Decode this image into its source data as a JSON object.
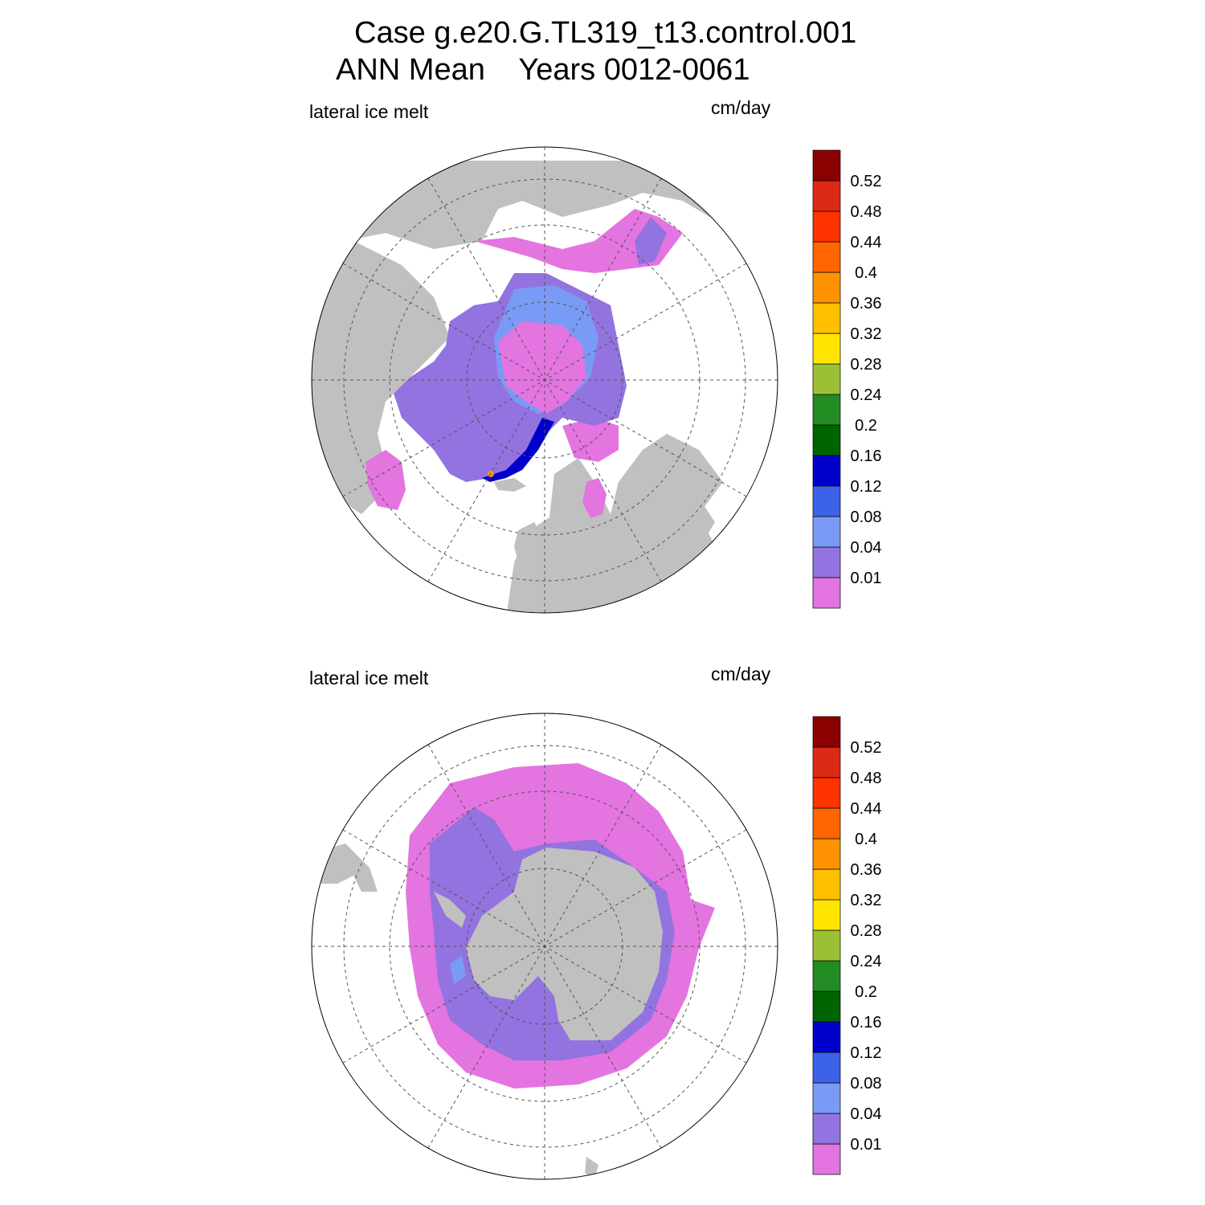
{
  "header": {
    "case_line": "Case g.e20.G.TL319_t13.control.001",
    "period_line": "ANN Mean    Years 0012-0061"
  },
  "colorbar": {
    "levels": [
      "0.01",
      "0.04",
      "0.08",
      "0.12",
      "0.16",
      "0.2",
      "0.24",
      "0.28",
      "0.32",
      "0.36",
      "0.4",
      "0.44",
      "0.48",
      "0.52"
    ],
    "colors": [
      "#e374e0",
      "#9373e0",
      "#7a9bf5",
      "#3b62e8",
      "#0000cd",
      "#006400",
      "#228b22",
      "#9cc034",
      "#ffe400",
      "#ffc000",
      "#ff9200",
      "#ff6500",
      "#ff3300",
      "#dd2a14",
      "#8b0000"
    ]
  },
  "palette": {
    "land": "#c0c0c0",
    "ocean": "#ffffff",
    "ice_low": "#e374e0",
    "ice_mid": "#9373e0",
    "ice_high": "#7a9bf5"
  },
  "panels": [
    {
      "id": "north",
      "variable_label": "lateral ice melt",
      "units_label": "cm/day",
      "hemisphere": "Northern"
    },
    {
      "id": "south",
      "variable_label": "lateral ice melt",
      "units_label": "cm/day",
      "hemisphere": "Southern"
    }
  ]
}
